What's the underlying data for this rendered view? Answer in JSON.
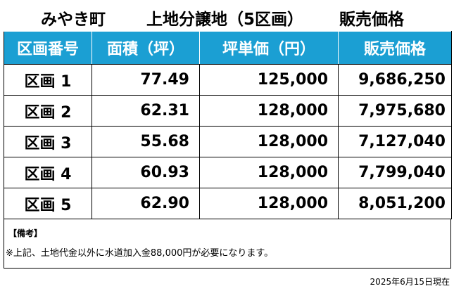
{
  "title": {
    "town": "みやき町",
    "subject": "上地分譲地（5区画）",
    "label": "販売価格"
  },
  "table": {
    "headers": [
      "区画番号",
      "面積（坪）",
      "坪単価（円）",
      "販売価格"
    ],
    "rows": [
      {
        "lot": "区画 1",
        "area": "77.49",
        "unit_price": "125,000",
        "price": "9,686,250"
      },
      {
        "lot": "区画 2",
        "area": "62.31",
        "unit_price": "128,000",
        "price": "7,975,680"
      },
      {
        "lot": "区画 3",
        "area": "55.68",
        "unit_price": "128,000",
        "price": "7,127,040"
      },
      {
        "lot": "区画 4",
        "area": "60.93",
        "unit_price": "128,000",
        "price": "7,799,040"
      },
      {
        "lot": "区画 5",
        "area": "62.90",
        "unit_price": "128,000",
        "price": "8,051,200"
      }
    ]
  },
  "notes": {
    "heading": "【備考】",
    "text": "※上記、土地代金以外に水道加入金88,000円が必要になります。"
  },
  "date": "2025年6月15日現在",
  "colors": {
    "header_bg": "#1b9fd3",
    "header_text": "#ffffff"
  }
}
